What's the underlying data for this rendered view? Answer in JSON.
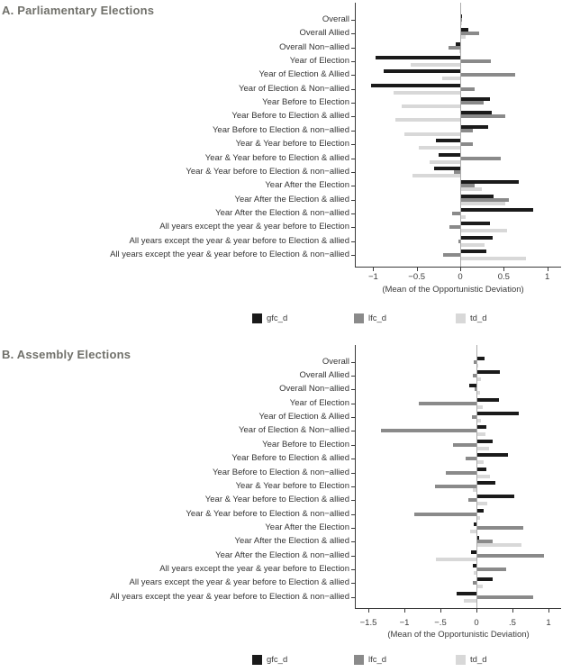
{
  "chart_data": [
    {
      "type": "bar",
      "orientation": "horizontal",
      "title": "A. Parliamentary Elections",
      "xlabel": "(Mean of the Opportunistic Deviation)",
      "xlim": [
        -1.22,
        1.17
      ],
      "xticks": [
        -1,
        -0.5,
        0,
        0.5,
        1
      ],
      "xtick_labels": [
        "−1",
        "−0.5",
        "0",
        "0.5",
        "1"
      ],
      "grid": false,
      "legend_position": "bottom",
      "categories": [
        "Overall",
        "Overall Allied",
        "Overall Non−allied",
        "Year of Election",
        "Year of Election & Allied",
        "Year of Election & Non−allied",
        "Year Before to Election",
        "Year Before to Election & allied",
        "Year Before to Election & non−allied",
        "Year & Year before to Election",
        "Year & Year before to Election & allied",
        "Year & Year before to Election & non−allied",
        "Year After the Election",
        "Year After the Election & allied",
        "Year After the Election & non−allied",
        "All years except the year & year before to Election",
        "All years except the year & year before to Election & allied",
        "All years except the year & year before to Election & non−allied"
      ],
      "series": [
        {
          "name": "gfc_d",
          "color": "#1a1a1a",
          "values": [
            0.01,
            0.08,
            -0.05,
            -0.97,
            -0.88,
            -1.02,
            0.33,
            0.35,
            0.31,
            -0.28,
            -0.25,
            -0.3,
            0.66,
            0.37,
            0.83,
            0.33,
            0.36,
            0.29
          ]
        },
        {
          "name": "lfc_d",
          "color": "#8a8a8a",
          "values": [
            0.01,
            0.21,
            -0.13,
            0.34,
            0.62,
            0.16,
            0.26,
            0.51,
            0.13,
            0.13,
            0.46,
            -0.07,
            0.16,
            0.55,
            -0.09,
            -0.12,
            -0.02,
            -0.2
          ]
        },
        {
          "name": "td_d",
          "color": "#d8d8d8",
          "values": [
            0.01,
            0.05,
            -0.01,
            -0.57,
            -0.21,
            -0.77,
            -0.67,
            -0.75,
            -0.64,
            -0.48,
            -0.35,
            -0.55,
            0.24,
            0.51,
            0.05,
            0.53,
            0.27,
            0.75
          ]
        }
      ]
    },
    {
      "type": "bar",
      "orientation": "horizontal",
      "title": "B. Assembly Elections",
      "xlabel": "(Mean of the Opportunistic Deviation)",
      "xlim": [
        -1.7,
        1.19
      ],
      "xticks": [
        -1.5,
        -1,
        -0.5,
        0,
        0.5,
        1
      ],
      "xtick_labels": [
        "−1.5",
        "−1",
        "−.5",
        "0",
        ".5",
        "1"
      ],
      "grid": false,
      "legend_position": "bottom",
      "categories": [
        "Overall",
        "Overall Allied",
        "Overall Non−allied",
        "Year of Election",
        "Year of Election & Allied",
        "Year of Election & Non−allied",
        "Year Before to Election",
        "Year Before to Election & allied",
        "Year Before to Election & non−allied",
        "Year & Year before to Election",
        "Year & Year before to Election & allied",
        "Year & Year before to Election & non−allied",
        "Year After the Election",
        "Year After the Election & allied",
        "Year After the Election & non−allied",
        "All years except the year & year before to Election",
        "All years except the year & year before to Election & allied",
        "All years except the year & year before to Election & non−allied"
      ],
      "series": [
        {
          "name": "gfc_d",
          "color": "#1a1a1a",
          "values": [
            0.1,
            0.31,
            -0.1,
            0.3,
            0.58,
            0.12,
            0.21,
            0.43,
            0.12,
            0.25,
            0.51,
            0.09,
            -0.04,
            0.02,
            -0.07,
            -0.05,
            0.21,
            -0.27
          ]
        },
        {
          "name": "lfc_d",
          "color": "#8a8a8a",
          "values": [
            -0.04,
            -0.05,
            -0.02,
            -0.8,
            -0.06,
            -1.32,
            -0.33,
            -0.15,
            -0.43,
            -0.58,
            -0.11,
            -0.86,
            0.64,
            0.21,
            0.92,
            0.4,
            -0.05,
            0.78
          ]
        },
        {
          "name": "td_d",
          "color": "#d8d8d8",
          "values": [
            0.01,
            0.05,
            0.04,
            0.07,
            0.05,
            0.11,
            0.16,
            0.09,
            0.17,
            -0.05,
            0.14,
            0.04,
            -0.09,
            0.61,
            -0.56,
            -0.04,
            0.08,
            -0.17
          ]
        }
      ]
    }
  ]
}
